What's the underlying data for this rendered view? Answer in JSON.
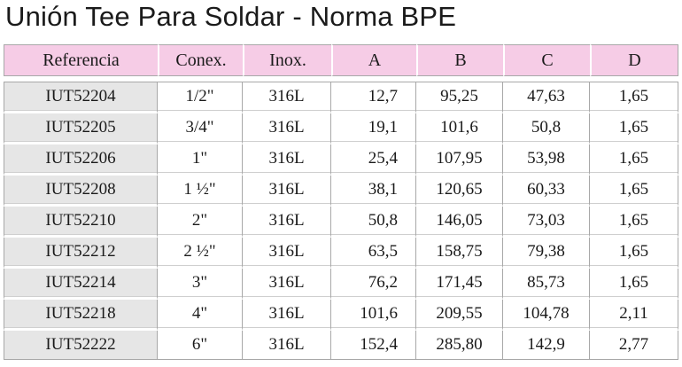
{
  "title": "Unión Tee Para Soldar - Norma BPE",
  "headers": [
    "Referencia",
    "Conex.",
    "Inox.",
    "A",
    "B",
    "C",
    "D"
  ],
  "rows": [
    [
      "IUT52204",
      "1/2\"",
      "316L",
      "12,7",
      "95,25",
      "47,63",
      "1,65"
    ],
    [
      "IUT52205",
      "3/4\"",
      "316L",
      "19,1",
      "101,6",
      "50,8",
      "1,65"
    ],
    [
      "IUT52206",
      "1\"",
      "316L",
      "25,4",
      "107,95",
      "53,98",
      "1,65"
    ],
    [
      "IUT52208",
      "1 ½\"",
      "316L",
      "38,1",
      "120,65",
      "60,33",
      "1,65"
    ],
    [
      "IUT52210",
      "2\"",
      "316L",
      "50,8",
      "146,05",
      "73,03",
      "1,65"
    ],
    [
      "IUT52212",
      "2 ½\"",
      "316L",
      "63,5",
      "158,75",
      "79,38",
      "1,65"
    ],
    [
      "IUT52214",
      "3\"",
      "316L",
      "76,2",
      "171,45",
      "85,73",
      "1,65"
    ],
    [
      "IUT52218",
      "4\"",
      "316L",
      "101,6",
      "209,55",
      "104,78",
      "2,11"
    ],
    [
      "IUT52222",
      "6\"",
      "316L",
      "152,4",
      "285,80",
      "142,9",
      "2,77"
    ]
  ],
  "colors": {
    "header_bg": "#f6cce6",
    "ref_col_bg": "#e6e6e6",
    "border": "#a8a8a8"
  }
}
